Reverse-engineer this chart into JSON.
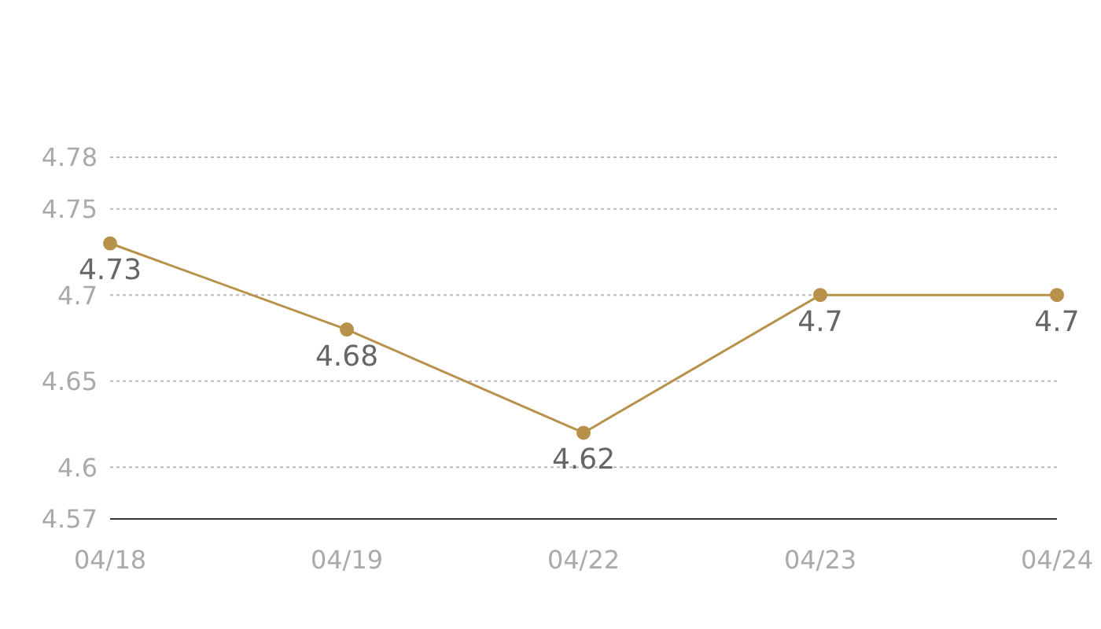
{
  "chart_data": {
    "type": "line",
    "categories": [
      "04/18",
      "04/19",
      "04/22",
      "04/23",
      "04/24"
    ],
    "series": [
      {
        "color": "#b8914a",
        "values": [
          4.73,
          4.68,
          4.62,
          4.7,
          4.7
        ]
      }
    ],
    "ylim": [
      4.57,
      4.78
    ],
    "yticks": [
      4.57,
      4.6,
      4.65,
      4.7,
      4.75,
      4.78
    ],
    "grid": "y",
    "marker": "circle",
    "line_style": "solid",
    "data_labels": true
  }
}
